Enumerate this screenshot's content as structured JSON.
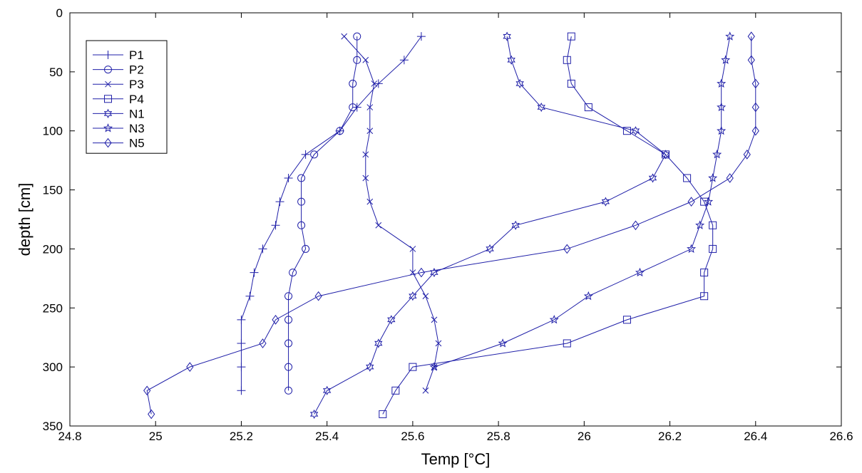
{
  "chart_data": {
    "type": "line",
    "xlabel": "Temp [°C]",
    "ylabel": "depth [cm]",
    "xlim": [
      24.8,
      26.6
    ],
    "ylim": [
      0,
      350
    ],
    "y_reversed": true,
    "xticks": [
      "24.8",
      "25",
      "25.2",
      "25.4",
      "25.6",
      "25.8",
      "26",
      "26.2",
      "26.4",
      "26.6"
    ],
    "yticks": [
      "0",
      "50",
      "100",
      "150",
      "200",
      "250",
      "300",
      "350"
    ],
    "legend_position": "top-left",
    "line_color": "#1f1fa8",
    "series": [
      {
        "name": "P1",
        "marker": "plus",
        "points": [
          [
            25.62,
            20
          ],
          [
            25.58,
            40
          ],
          [
            25.52,
            60
          ],
          [
            25.47,
            80
          ],
          [
            25.43,
            100
          ],
          [
            25.35,
            120
          ],
          [
            25.31,
            140
          ],
          [
            25.29,
            160
          ],
          [
            25.28,
            180
          ],
          [
            25.25,
            200
          ],
          [
            25.23,
            220
          ],
          [
            25.22,
            240
          ],
          [
            25.2,
            260
          ],
          [
            25.2,
            280
          ],
          [
            25.2,
            300
          ],
          [
            25.2,
            320
          ]
        ]
      },
      {
        "name": "P2",
        "marker": "circle",
        "points": [
          [
            25.47,
            20
          ],
          [
            25.47,
            40
          ],
          [
            25.46,
            60
          ],
          [
            25.46,
            80
          ],
          [
            25.43,
            100
          ],
          [
            25.37,
            120
          ],
          [
            25.34,
            140
          ],
          [
            25.34,
            160
          ],
          [
            25.34,
            180
          ],
          [
            25.35,
            200
          ],
          [
            25.32,
            220
          ],
          [
            25.31,
            240
          ],
          [
            25.31,
            260
          ],
          [
            25.31,
            280
          ],
          [
            25.31,
            300
          ],
          [
            25.31,
            320
          ]
        ]
      },
      {
        "name": "P3",
        "marker": "x",
        "points": [
          [
            25.44,
            20
          ],
          [
            25.49,
            40
          ],
          [
            25.51,
            60
          ],
          [
            25.5,
            80
          ],
          [
            25.5,
            100
          ],
          [
            25.49,
            120
          ],
          [
            25.49,
            140
          ],
          [
            25.5,
            160
          ],
          [
            25.52,
            180
          ],
          [
            25.6,
            200
          ],
          [
            25.6,
            220
          ],
          [
            25.63,
            240
          ],
          [
            25.65,
            260
          ],
          [
            25.66,
            280
          ],
          [
            25.65,
            300
          ],
          [
            25.63,
            320
          ]
        ]
      },
      {
        "name": "P4",
        "marker": "square",
        "points": [
          [
            25.97,
            20
          ],
          [
            25.96,
            40
          ],
          [
            25.97,
            60
          ],
          [
            26.01,
            80
          ],
          [
            26.1,
            100
          ],
          [
            26.19,
            120
          ],
          [
            26.24,
            140
          ],
          [
            26.28,
            160
          ],
          [
            26.3,
            180
          ],
          [
            26.3,
            200
          ],
          [
            26.28,
            220
          ],
          [
            26.28,
            240
          ],
          [
            26.1,
            260
          ],
          [
            25.96,
            280
          ],
          [
            25.6,
            300
          ],
          [
            25.56,
            320
          ],
          [
            25.53,
            340
          ]
        ]
      },
      {
        "name": "N1",
        "marker": "hexagram",
        "points": [
          [
            25.82,
            20
          ],
          [
            25.83,
            40
          ],
          [
            25.85,
            60
          ],
          [
            25.9,
            80
          ],
          [
            26.12,
            100
          ],
          [
            26.19,
            120
          ],
          [
            26.16,
            140
          ],
          [
            26.05,
            160
          ],
          [
            25.84,
            180
          ],
          [
            25.78,
            200
          ],
          [
            25.65,
            220
          ],
          [
            25.6,
            240
          ],
          [
            25.55,
            260
          ],
          [
            25.52,
            280
          ],
          [
            25.5,
            300
          ],
          [
            25.4,
            320
          ],
          [
            25.37,
            340
          ]
        ]
      },
      {
        "name": "N3",
        "marker": "pentagram",
        "points": [
          [
            26.34,
            20
          ],
          [
            26.33,
            40
          ],
          [
            26.32,
            60
          ],
          [
            26.32,
            80
          ],
          [
            26.32,
            100
          ],
          [
            26.31,
            120
          ],
          [
            26.3,
            140
          ],
          [
            26.29,
            160
          ],
          [
            26.27,
            180
          ],
          [
            26.25,
            200
          ],
          [
            26.13,
            220
          ],
          [
            26.01,
            240
          ],
          [
            25.93,
            260
          ],
          [
            25.81,
            280
          ],
          [
            25.65,
            300
          ]
        ]
      },
      {
        "name": "N5",
        "marker": "diamond",
        "points": [
          [
            26.39,
            20
          ],
          [
            26.39,
            40
          ],
          [
            26.4,
            60
          ],
          [
            26.4,
            80
          ],
          [
            26.4,
            100
          ],
          [
            26.38,
            120
          ],
          [
            26.34,
            140
          ],
          [
            26.25,
            160
          ],
          [
            26.12,
            180
          ],
          [
            25.96,
            200
          ],
          [
            25.62,
            220
          ],
          [
            25.38,
            240
          ],
          [
            25.28,
            260
          ],
          [
            25.25,
            280
          ],
          [
            25.08,
            300
          ],
          [
            24.98,
            320
          ],
          [
            24.99,
            340
          ]
        ]
      }
    ]
  }
}
